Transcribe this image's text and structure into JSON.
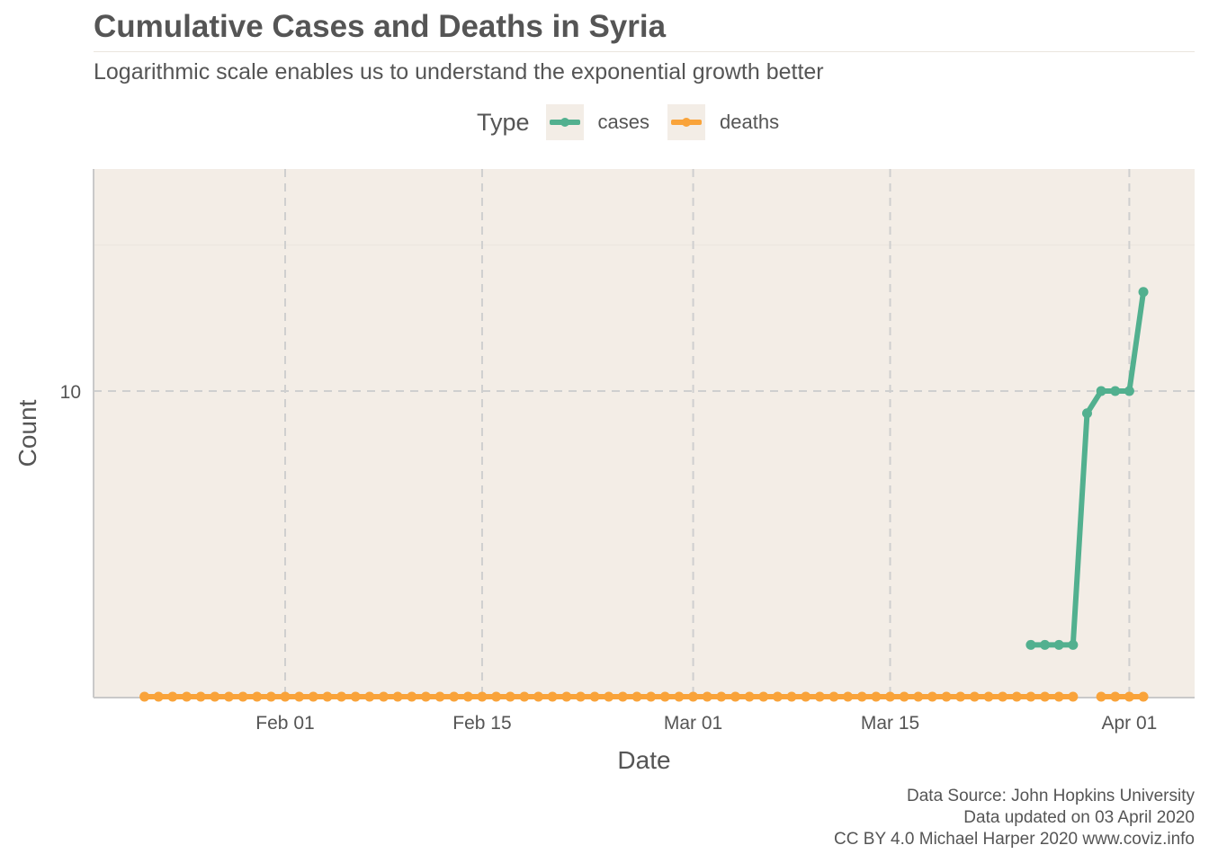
{
  "title": "Cumulative Cases and Deaths in Syria",
  "subtitle": "Logarithmic scale enables us to understand the exponential growth better",
  "legend": {
    "title": "Type",
    "items": [
      {
        "label": "cases",
        "color": "#52b08f"
      },
      {
        "label": "deaths",
        "color": "#f9a33a"
      }
    ]
  },
  "caption": {
    "line1": "Data Source: John Hopkins University",
    "line2": "Data updated on 03 April 2020",
    "line3": "CC BY 4.0 Michael Harper 2020 www.coviz.info"
  },
  "colors": {
    "panel_background": "#f3ede6",
    "grid": "#cfcfcf",
    "cases": "#52b08f",
    "deaths": "#f9a33a",
    "text": "#555555"
  },
  "chart_data": {
    "type": "line",
    "title": "Cumulative Cases and Deaths in Syria",
    "subtitle": "Logarithmic scale enables us to understand the exponential growth better",
    "xlabel": "Date",
    "ylabel": "Count",
    "y_scale": "log10",
    "xlim": [
      "2020-01-18",
      "2020-04-05"
    ],
    "ylim": [
      1,
      20
    ],
    "x_ticks": [
      {
        "date": "2020-02-01",
        "label": "Feb 01"
      },
      {
        "date": "2020-02-15",
        "label": "Feb 15"
      },
      {
        "date": "2020-03-01",
        "label": "Mar 01"
      },
      {
        "date": "2020-03-15",
        "label": "Mar 15"
      },
      {
        "date": "2020-04-01",
        "label": "Apr 01"
      }
    ],
    "y_ticks": [
      {
        "value": 10,
        "label": "10"
      }
    ],
    "grid": true,
    "legend_position": "top",
    "series": [
      {
        "name": "cases",
        "color": "#52b08f",
        "points": [
          [
            "2020-03-25",
            3
          ],
          [
            "2020-03-26",
            3
          ],
          [
            "2020-03-27",
            3
          ],
          [
            "2020-03-28",
            3
          ],
          [
            "2020-03-29",
            9
          ],
          [
            "2020-03-30",
            10
          ],
          [
            "2020-03-31",
            10
          ],
          [
            "2020-04-01",
            10
          ],
          [
            "2020-04-02",
            16
          ]
        ]
      },
      {
        "name": "deaths",
        "color": "#f9a33a",
        "points": [
          [
            "2020-01-22",
            0
          ],
          [
            "2020-01-23",
            0
          ],
          [
            "2020-01-24",
            0
          ],
          [
            "2020-01-25",
            0
          ],
          [
            "2020-01-26",
            0
          ],
          [
            "2020-01-27",
            0
          ],
          [
            "2020-01-28",
            0
          ],
          [
            "2020-01-29",
            0
          ],
          [
            "2020-01-30",
            0
          ],
          [
            "2020-01-31",
            0
          ],
          [
            "2020-02-01",
            0
          ],
          [
            "2020-02-02",
            0
          ],
          [
            "2020-02-03",
            0
          ],
          [
            "2020-02-04",
            0
          ],
          [
            "2020-02-05",
            0
          ],
          [
            "2020-02-06",
            0
          ],
          [
            "2020-02-07",
            0
          ],
          [
            "2020-02-08",
            0
          ],
          [
            "2020-02-09",
            0
          ],
          [
            "2020-02-10",
            0
          ],
          [
            "2020-02-11",
            0
          ],
          [
            "2020-02-12",
            0
          ],
          [
            "2020-02-13",
            0
          ],
          [
            "2020-02-14",
            0
          ],
          [
            "2020-02-15",
            0
          ],
          [
            "2020-02-16",
            0
          ],
          [
            "2020-02-17",
            0
          ],
          [
            "2020-02-18",
            0
          ],
          [
            "2020-02-19",
            0
          ],
          [
            "2020-02-20",
            0
          ],
          [
            "2020-02-21",
            0
          ],
          [
            "2020-02-22",
            0
          ],
          [
            "2020-02-23",
            0
          ],
          [
            "2020-02-24",
            0
          ],
          [
            "2020-02-25",
            0
          ],
          [
            "2020-02-26",
            0
          ],
          [
            "2020-02-27",
            0
          ],
          [
            "2020-02-28",
            0
          ],
          [
            "2020-02-29",
            0
          ],
          [
            "2020-03-01",
            0
          ],
          [
            "2020-03-02",
            0
          ],
          [
            "2020-03-03",
            0
          ],
          [
            "2020-03-04",
            0
          ],
          [
            "2020-03-05",
            0
          ],
          [
            "2020-03-06",
            0
          ],
          [
            "2020-03-07",
            0
          ],
          [
            "2020-03-08",
            0
          ],
          [
            "2020-03-09",
            0
          ],
          [
            "2020-03-10",
            0
          ],
          [
            "2020-03-11",
            0
          ],
          [
            "2020-03-12",
            0
          ],
          [
            "2020-03-13",
            0
          ],
          [
            "2020-03-14",
            0
          ],
          [
            "2020-03-15",
            0
          ],
          [
            "2020-03-16",
            0
          ],
          [
            "2020-03-17",
            0
          ],
          [
            "2020-03-18",
            0
          ],
          [
            "2020-03-19",
            0
          ],
          [
            "2020-03-20",
            0
          ],
          [
            "2020-03-21",
            0
          ],
          [
            "2020-03-22",
            0
          ],
          [
            "2020-03-23",
            0
          ],
          [
            "2020-03-24",
            0
          ],
          [
            "2020-03-25",
            0
          ],
          [
            "2020-03-26",
            0
          ],
          [
            "2020-03-27",
            0
          ],
          [
            "2020-03-28",
            0
          ],
          [
            "2020-03-30",
            0
          ],
          [
            "2020-03-31",
            0
          ],
          [
            "2020-04-01",
            0
          ],
          [
            "2020-04-02",
            0
          ]
        ]
      }
    ]
  }
}
